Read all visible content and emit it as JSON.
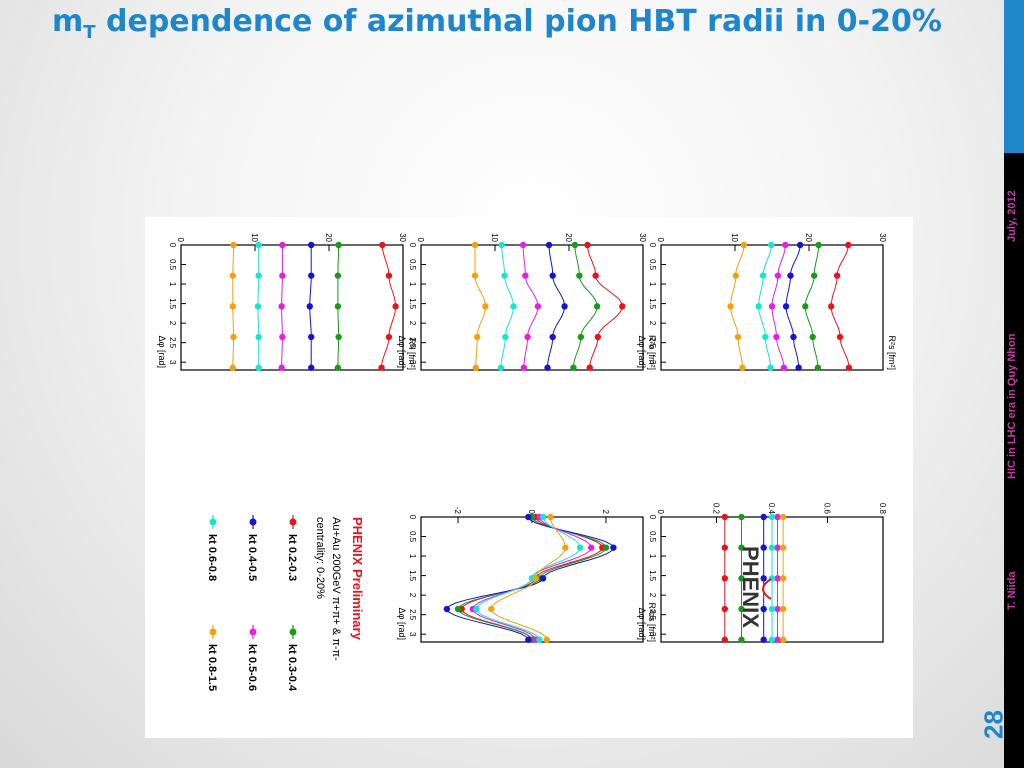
{
  "slide": {
    "title_main": "m",
    "title_sub": "T",
    "title_rest": " dependence of azimuthal pion HBT radii in 0-20%",
    "footer_author": "T. Niida",
    "footer_event": "HIC in LHC era in Quy Nhon",
    "footer_date": "July, 2012",
    "page_number": "28"
  },
  "figure": {
    "logo_text": "PHENIX",
    "legend_title": "PHENIX Preliminary",
    "legend_line1": "Au+Au 200GeV π+π+ & π-π-",
    "legend_line2": "centrality: 0-20%",
    "colors": {
      "kt0203": "#e8141c",
      "kt0304": "#1a9a1a",
      "kt0405": "#1414d2",
      "kt0506": "#e61ee6",
      "kt0608": "#14e6d2",
      "kt0815": "#f2a10f"
    }
  },
  "chart_data": [
    {
      "type": "line",
      "title": "",
      "xlabel": "Δφ [rad]",
      "ylabel": "R²s [fm²]",
      "xlim": [
        0,
        3.2
      ],
      "ylim": [
        0,
        30
      ],
      "xticks": [
        "0",
        "0.5",
        "1",
        "1.5",
        "2",
        "2.5",
        "3"
      ],
      "yticks": [
        "0",
        "10",
        "20",
        "30"
      ],
      "x": [
        0,
        0.785,
        1.571,
        2.356,
        3.142
      ],
      "series": [
        {
          "name": "kt 0.2-0.3",
          "values": [
            25.3,
            23.8,
            23.0,
            24.2,
            25.4
          ]
        },
        {
          "name": "kt 0.3-0.4",
          "values": [
            21.3,
            20.7,
            19.5,
            20.5,
            21.2
          ]
        },
        {
          "name": "kt 0.4-0.5",
          "values": [
            18.8,
            17.5,
            16.9,
            17.9,
            18.6
          ]
        },
        {
          "name": "kt 0.5-0.6",
          "values": [
            16.8,
            15.8,
            15.0,
            15.6,
            16.6
          ]
        },
        {
          "name": "kt 0.6-0.8",
          "values": [
            14.9,
            13.8,
            13.2,
            14.1,
            14.8
          ]
        },
        {
          "name": "kt 0.8-1.5",
          "values": [
            11.2,
            10.1,
            9.4,
            10.4,
            11.0
          ]
        }
      ]
    },
    {
      "type": "line",
      "title": "",
      "xlabel": "Δφ [rad]",
      "ylabel": "R²o [fm²]",
      "xlim": [
        0,
        3.2
      ],
      "ylim": [
        0,
        30
      ],
      "xticks": [
        "0",
        "0.5",
        "1",
        "1.5",
        "2",
        "2.5",
        "3"
      ],
      "yticks": [
        "0",
        "10",
        "20",
        "30"
      ],
      "x": [
        0,
        0.785,
        1.571,
        2.356,
        3.142
      ],
      "series": [
        {
          "name": "kt 0.2-0.3",
          "values": [
            22.5,
            23.6,
            27.2,
            23.9,
            22.8
          ]
        },
        {
          "name": "kt 0.3-0.4",
          "values": [
            20.8,
            21.4,
            23.8,
            21.6,
            20.6
          ]
        },
        {
          "name": "kt 0.4-0.5",
          "values": [
            17.3,
            17.8,
            19.4,
            17.8,
            17.1
          ]
        },
        {
          "name": "kt 0.5-0.6",
          "values": [
            13.8,
            14.1,
            15.8,
            14.4,
            13.9
          ]
        },
        {
          "name": "kt 0.6-0.8",
          "values": [
            10.9,
            11.3,
            12.5,
            11.4,
            10.8
          ]
        },
        {
          "name": "kt 0.8-1.5",
          "values": [
            7.3,
            7.3,
            8.7,
            7.6,
            7.4
          ]
        }
      ]
    },
    {
      "type": "line",
      "title": "",
      "xlabel": "Δφ [rad]",
      "ylabel": "R²l [fm²]",
      "xlim": [
        0,
        3.2
      ],
      "ylim": [
        0,
        30
      ],
      "xticks": [
        "0",
        "0.5",
        "1",
        "1.5",
        "2",
        "2.5",
        "3"
      ],
      "yticks": [
        "0",
        "10",
        "20",
        "30"
      ],
      "x": [
        0,
        0.785,
        1.571,
        2.356,
        3.142
      ],
      "series": [
        {
          "name": "kt 0.2-0.3",
          "values": [
            27.2,
            28.1,
            29.0,
            28.1,
            27.1
          ]
        },
        {
          "name": "kt 0.3-0.4",
          "values": [
            21.3,
            21.2,
            21.2,
            21.3,
            21.2
          ]
        },
        {
          "name": "kt 0.4-0.5",
          "values": [
            17.6,
            17.6,
            17.4,
            17.6,
            17.6
          ]
        },
        {
          "name": "kt 0.5-0.6",
          "values": [
            13.7,
            13.7,
            13.6,
            13.7,
            13.6
          ]
        },
        {
          "name": "kt 0.6-0.8",
          "values": [
            10.5,
            10.5,
            10.4,
            10.5,
            10.5
          ]
        },
        {
          "name": "kt 0.8-1.5",
          "values": [
            7.1,
            7.0,
            7.0,
            7.1,
            7.0
          ]
        }
      ]
    },
    {
      "type": "line",
      "title": "",
      "xlabel": "Δφ [rad]",
      "ylabel": "",
      "xlim": [
        0,
        3.2
      ],
      "ylim": [
        0,
        0.8
      ],
      "xticks": [
        "0",
        "0.5",
        "1",
        "1.5",
        "2",
        "2.5",
        "3"
      ],
      "yticks": [
        "0",
        "0.2",
        "0.4",
        "0.6",
        "0.8"
      ],
      "x": [
        0,
        0.785,
        1.571,
        2.356,
        3.142
      ],
      "series": [
        {
          "name": "kt 0.2-0.3",
          "values": [
            0.23,
            0.23,
            0.23,
            0.23,
            0.23
          ]
        },
        {
          "name": "kt 0.3-0.4",
          "values": [
            0.29,
            0.29,
            0.29,
            0.29,
            0.29
          ]
        },
        {
          "name": "kt 0.4-0.5",
          "values": [
            0.37,
            0.37,
            0.37,
            0.37,
            0.37
          ]
        },
        {
          "name": "kt 0.5-0.6",
          "values": [
            0.42,
            0.42,
            0.42,
            0.42,
            0.42
          ]
        },
        {
          "name": "kt 0.6-0.8",
          "values": [
            0.4,
            0.4,
            0.4,
            0.4,
            0.4
          ]
        },
        {
          "name": "kt 0.8-1.5",
          "values": [
            0.44,
            0.44,
            0.44,
            0.44,
            0.44
          ]
        }
      ]
    },
    {
      "type": "line",
      "title": "",
      "xlabel": "Δφ [rad]",
      "ylabel": "R²os [fm²]",
      "xlim": [
        0,
        3.2
      ],
      "ylim": [
        -3,
        3
      ],
      "xticks": [
        "0",
        "0.5",
        "1",
        "1.5",
        "2",
        "2.5",
        "3"
      ],
      "yticks": [
        "-2",
        "0",
        "2"
      ],
      "x": [
        0,
        0.785,
        1.571,
        2.356,
        3.142
      ],
      "series": [
        {
          "name": "kt 0.2-0.3",
          "values": [
            0.1,
            1.9,
            0.1,
            -1.9,
            0.0
          ]
        },
        {
          "name": "kt 0.3-0.4",
          "values": [
            0.0,
            2.0,
            0.2,
            -2.0,
            0.0
          ]
        },
        {
          "name": "kt 0.4-0.5",
          "values": [
            -0.1,
            2.2,
            0.3,
            -2.3,
            -0.1
          ]
        },
        {
          "name": "kt 0.5-0.6",
          "values": [
            0.2,
            1.6,
            0.0,
            -1.6,
            0.1
          ]
        },
        {
          "name": "kt 0.6-0.8",
          "values": [
            0.3,
            1.3,
            0.0,
            -1.5,
            0.2
          ]
        },
        {
          "name": "kt 0.8-1.5",
          "values": [
            0.5,
            0.9,
            0.1,
            -1.1,
            0.4
          ]
        }
      ]
    }
  ]
}
